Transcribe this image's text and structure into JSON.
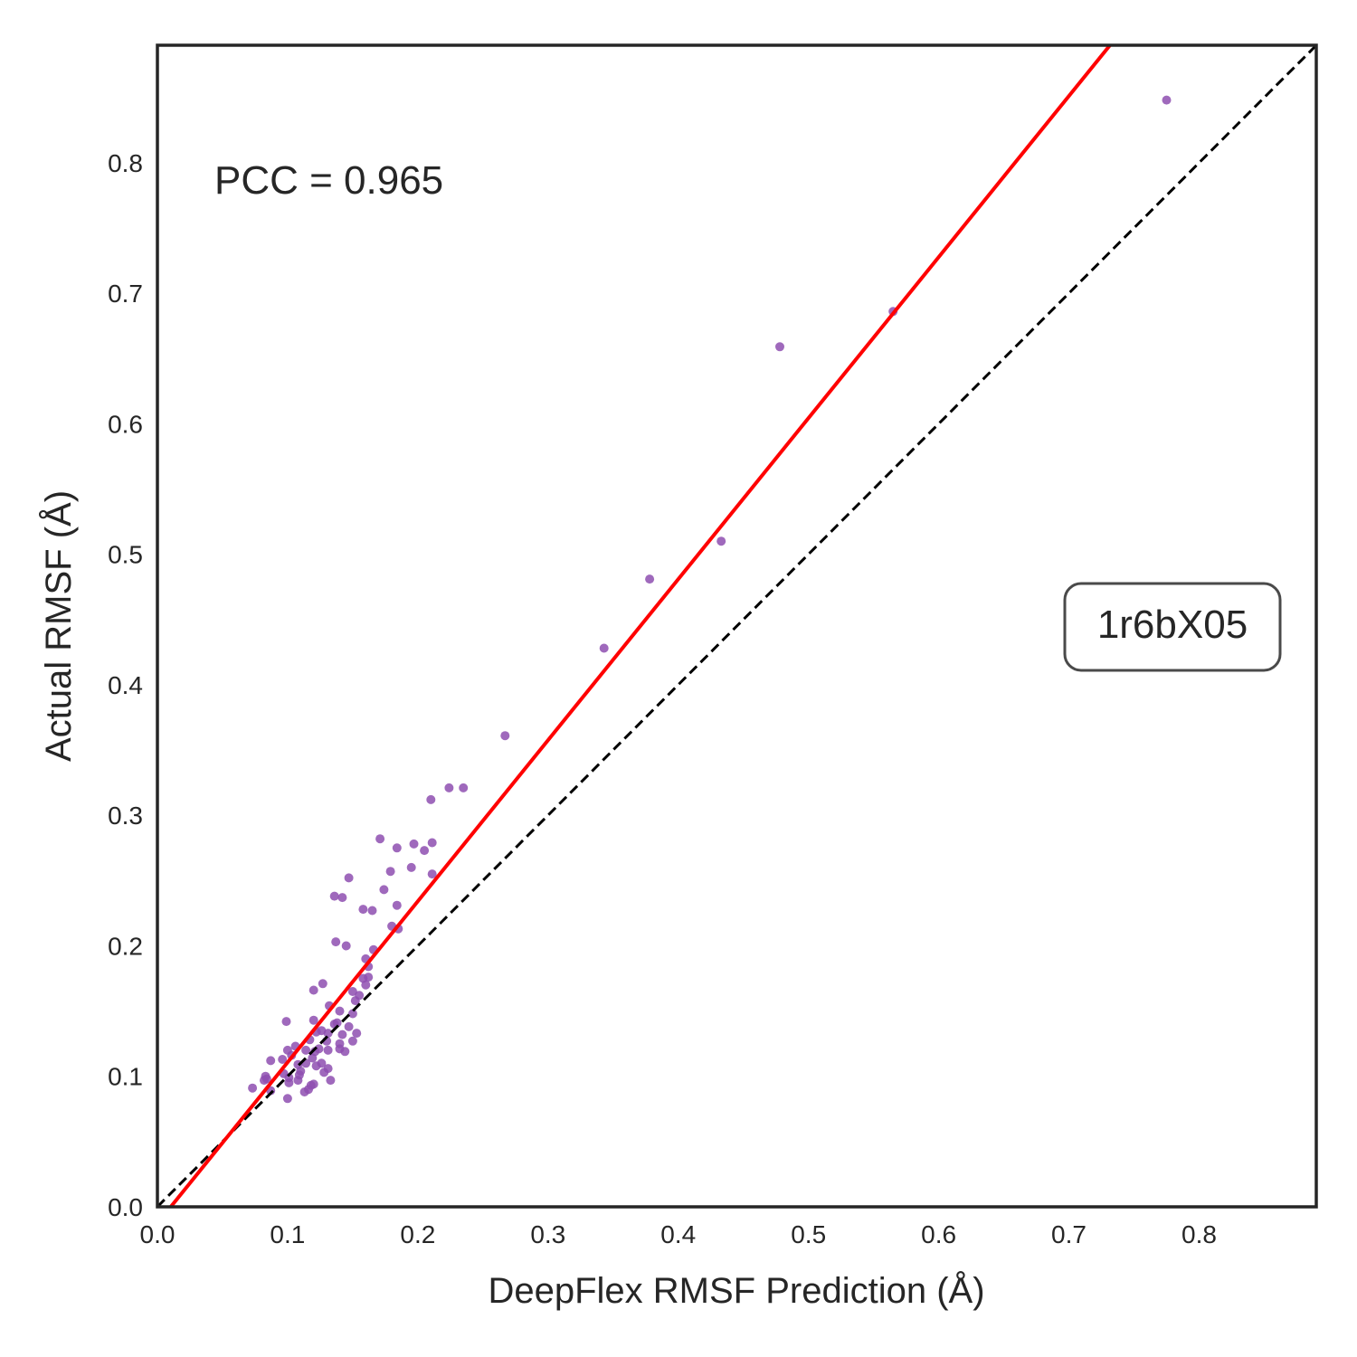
{
  "chart_data": {
    "type": "scatter",
    "title": "",
    "xlabel": "DeepFlex RMSF Prediction (Å)",
    "ylabel": "Actual RMSF (Å)",
    "xlim": [
      0.0,
      0.89
    ],
    "ylim": [
      0.0,
      0.89
    ],
    "x_ticks": [
      "0.0",
      "0.1",
      "0.2",
      "0.3",
      "0.4",
      "0.5",
      "0.6",
      "0.7",
      "0.8"
    ],
    "y_ticks": [
      "0.0",
      "0.1",
      "0.2",
      "0.3",
      "0.4",
      "0.5",
      "0.6",
      "0.7",
      "0.8"
    ],
    "grid": false,
    "annotation": "PCC = 0.965",
    "label_box": "1r6bX05",
    "point_color": "#8e4fb0",
    "fit_line_color": "#ff0000",
    "identity_line_color": "#000000",
    "fit_line": {
      "slope": 1.234,
      "intercept": -0.0127
    },
    "identity_line": {
      "slope": 1,
      "intercept": 0
    },
    "points": [
      [
        0.775,
        0.848
      ],
      [
        0.565,
        0.686
      ],
      [
        0.478,
        0.659
      ],
      [
        0.433,
        0.51
      ],
      [
        0.378,
        0.481
      ],
      [
        0.343,
        0.428
      ],
      [
        0.267,
        0.361
      ],
      [
        0.235,
        0.321
      ],
      [
        0.224,
        0.321
      ],
      [
        0.21,
        0.312
      ],
      [
        0.171,
        0.282
      ],
      [
        0.184,
        0.275
      ],
      [
        0.197,
        0.278
      ],
      [
        0.211,
        0.279
      ],
      [
        0.205,
        0.273
      ],
      [
        0.195,
        0.26
      ],
      [
        0.179,
        0.257
      ],
      [
        0.211,
        0.255
      ],
      [
        0.147,
        0.252
      ],
      [
        0.174,
        0.243
      ],
      [
        0.136,
        0.238
      ],
      [
        0.142,
        0.237
      ],
      [
        0.184,
        0.231
      ],
      [
        0.158,
        0.228
      ],
      [
        0.165,
        0.227
      ],
      [
        0.18,
        0.215
      ],
      [
        0.185,
        0.213
      ],
      [
        0.137,
        0.203
      ],
      [
        0.145,
        0.2
      ],
      [
        0.166,
        0.197
      ],
      [
        0.16,
        0.19
      ],
      [
        0.162,
        0.184
      ],
      [
        0.162,
        0.176
      ],
      [
        0.158,
        0.175
      ],
      [
        0.127,
        0.171
      ],
      [
        0.16,
        0.17
      ],
      [
        0.12,
        0.166
      ],
      [
        0.15,
        0.165
      ],
      [
        0.155,
        0.162
      ],
      [
        0.152,
        0.158
      ],
      [
        0.132,
        0.154
      ],
      [
        0.14,
        0.15
      ],
      [
        0.15,
        0.148
      ],
      [
        0.12,
        0.143
      ],
      [
        0.099,
        0.142
      ],
      [
        0.138,
        0.141
      ],
      [
        0.136,
        0.14
      ],
      [
        0.147,
        0.138
      ],
      [
        0.126,
        0.135
      ],
      [
        0.122,
        0.134
      ],
      [
        0.131,
        0.133
      ],
      [
        0.142,
        0.132
      ],
      [
        0.153,
        0.133
      ],
      [
        0.117,
        0.128
      ],
      [
        0.13,
        0.127
      ],
      [
        0.15,
        0.127
      ],
      [
        0.14,
        0.125
      ],
      [
        0.106,
        0.123
      ],
      [
        0.124,
        0.121
      ],
      [
        0.14,
        0.121
      ],
      [
        0.1,
        0.12
      ],
      [
        0.114,
        0.12
      ],
      [
        0.121,
        0.119
      ],
      [
        0.131,
        0.12
      ],
      [
        0.144,
        0.119
      ],
      [
        0.103,
        0.116
      ],
      [
        0.096,
        0.113
      ],
      [
        0.119,
        0.114
      ],
      [
        0.114,
        0.11
      ],
      [
        0.108,
        0.109
      ],
      [
        0.126,
        0.11
      ],
      [
        0.087,
        0.112
      ],
      [
        0.122,
        0.108
      ],
      [
        0.131,
        0.106
      ],
      [
        0.11,
        0.104
      ],
      [
        0.128,
        0.103
      ],
      [
        0.097,
        0.102
      ],
      [
        0.109,
        0.101
      ],
      [
        0.083,
        0.1
      ],
      [
        0.101,
        0.099
      ],
      [
        0.084,
        0.098
      ],
      [
        0.108,
        0.097
      ],
      [
        0.133,
        0.097
      ],
      [
        0.082,
        0.097
      ],
      [
        0.101,
        0.095
      ],
      [
        0.118,
        0.093
      ],
      [
        0.12,
        0.094
      ],
      [
        0.073,
        0.091
      ],
      [
        0.116,
        0.09
      ],
      [
        0.087,
        0.089
      ],
      [
        0.113,
        0.088
      ],
      [
        0.1,
        0.083
      ]
    ]
  }
}
